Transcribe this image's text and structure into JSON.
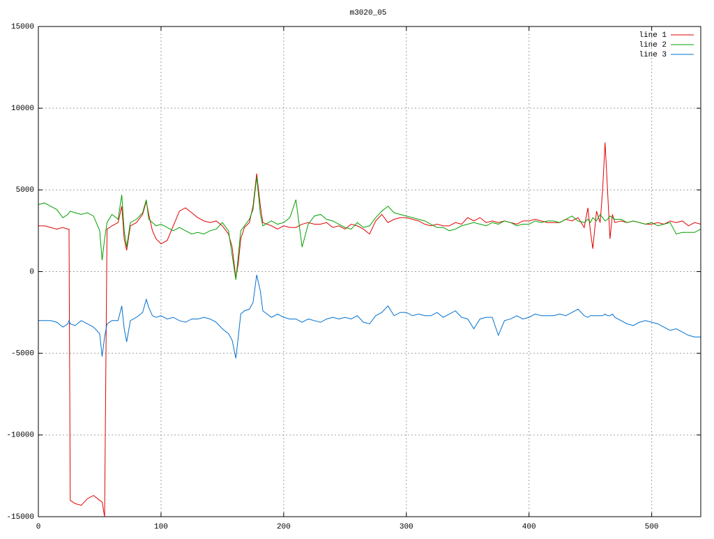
{
  "chart_data": {
    "type": "line",
    "title": "m3020_05",
    "xlim": [
      0,
      540
    ],
    "xticks": [
      0,
      100,
      200,
      300,
      400,
      500
    ],
    "ylim": [
      -15000,
      15000
    ],
    "yticks": [
      -15000,
      -10000,
      -5000,
      0,
      5000,
      10000,
      15000
    ],
    "grid": true,
    "legend": "top-right",
    "x": [
      0,
      5,
      10,
      15,
      20,
      24,
      25,
      26,
      30,
      35,
      40,
      45,
      50,
      52,
      54,
      56,
      60,
      65,
      68,
      70,
      72,
      75,
      80,
      85,
      88,
      90,
      93,
      96,
      100,
      105,
      110,
      115,
      120,
      125,
      130,
      135,
      140,
      145,
      150,
      155,
      158,
      161,
      163,
      165,
      168,
      172,
      175,
      178,
      181,
      183,
      190,
      195,
      200,
      205,
      210,
      215,
      220,
      225,
      230,
      235,
      240,
      245,
      250,
      255,
      260,
      265,
      270,
      275,
      280,
      285,
      290,
      295,
      300,
      305,
      310,
      315,
      320,
      325,
      330,
      335,
      340,
      345,
      350,
      355,
      360,
      365,
      370,
      375,
      380,
      385,
      390,
      395,
      400,
      405,
      410,
      415,
      420,
      425,
      430,
      435,
      440,
      445,
      448,
      450,
      452,
      455,
      458,
      460,
      462,
      464,
      466,
      468,
      470,
      475,
      480,
      485,
      490,
      495,
      500,
      505,
      510,
      515,
      520,
      525,
      530,
      535,
      540
    ],
    "series": [
      {
        "name": "line 1",
        "color": "#e00000",
        "values": [
          2800,
          2800,
          2700,
          2600,
          2700,
          2600,
          2600,
          -14000,
          -14200,
          -14300,
          -13900,
          -13700,
          -14000,
          -14100,
          -15000,
          2600,
          2800,
          3000,
          4000,
          2000,
          1300,
          2800,
          3000,
          3500,
          4300,
          3500,
          2500,
          2000,
          1700,
          1900,
          2800,
          3700,
          3900,
          3600,
          3300,
          3100,
          3000,
          3100,
          2800,
          2300,
          1500,
          -400,
          500,
          2000,
          2700,
          3000,
          4000,
          6000,
          4000,
          3000,
          2800,
          2600,
          2800,
          2700,
          2700,
          2900,
          3000,
          2900,
          2900,
          3000,
          2700,
          2800,
          2600,
          2900,
          2800,
          2600,
          2300,
          3100,
          3500,
          3000,
          3200,
          3300,
          3300,
          3200,
          3100,
          2900,
          2800,
          2900,
          2800,
          2800,
          3000,
          2900,
          3300,
          3100,
          3300,
          3000,
          3100,
          3000,
          3100,
          3000,
          2900,
          3100,
          3100,
          3200,
          3100,
          3000,
          3000,
          3000,
          3200,
          3100,
          3300,
          2700,
          3900,
          2500,
          1400,
          3700,
          3000,
          5000,
          7900,
          5000,
          2000,
          3500,
          3000,
          3100,
          3000,
          3100,
          3000,
          2900,
          2900,
          3000,
          2900,
          3100,
          3000,
          3100,
          2800,
          3000,
          2900
        ]
      },
      {
        "name": "line 2",
        "color": "#00a000",
        "values": [
          4100,
          4200,
          4000,
          3800,
          3300,
          3500,
          3600,
          3700,
          3600,
          3500,
          3600,
          3400,
          2500,
          700,
          2000,
          3000,
          3500,
          3200,
          4700,
          2500,
          1500,
          3000,
          3200,
          3600,
          4400,
          3200,
          3000,
          2800,
          2900,
          2700,
          2500,
          2700,
          2500,
          2300,
          2400,
          2300,
          2500,
          2600,
          3000,
          2500,
          1000,
          -500,
          1000,
          2500,
          2800,
          3200,
          3800,
          5800,
          3500,
          2800,
          3100,
          2900,
          3000,
          3300,
          4400,
          1500,
          2900,
          3400,
          3500,
          3200,
          3100,
          2900,
          2700,
          2600,
          3000,
          2700,
          2800,
          3300,
          3700,
          4000,
          3600,
          3500,
          3400,
          3300,
          3200,
          3100,
          2900,
          2700,
          2700,
          2500,
          2600,
          2800,
          2900,
          3000,
          2900,
          2800,
          3000,
          2900,
          3100,
          3000,
          2800,
          2900,
          2900,
          3100,
          3000,
          3100,
          3100,
          3000,
          3200,
          3400,
          3100,
          3000,
          3200,
          3000,
          3300,
          3100,
          3500,
          3300,
          3100,
          3200,
          3400,
          3300,
          3200,
          3200,
          3000,
          3100,
          3000,
          2900,
          3000,
          2800,
          2900,
          3000,
          2300,
          2400,
          2400,
          2400,
          2600
        ]
      },
      {
        "name": "line 3",
        "color": "#0070d0",
        "values": [
          -3000,
          -3000,
          -3000,
          -3100,
          -3400,
          -3200,
          -3000,
          -3200,
          -3300,
          -3000,
          -3200,
          -3400,
          -3800,
          -5200,
          -4000,
          -3200,
          -3000,
          -3000,
          -2100,
          -3500,
          -4300,
          -3000,
          -2800,
          -2500,
          -1700,
          -2200,
          -2700,
          -2800,
          -2700,
          -2900,
          -2800,
          -3000,
          -3100,
          -2900,
          -2900,
          -2800,
          -2900,
          -3100,
          -3500,
          -3800,
          -4200,
          -5300,
          -4000,
          -2600,
          -2400,
          -2300,
          -1900,
          -200,
          -1200,
          -2400,
          -2800,
          -2600,
          -2800,
          -2900,
          -2900,
          -3100,
          -2900,
          -3000,
          -3100,
          -2900,
          -2800,
          -2900,
          -2800,
          -2900,
          -2700,
          -3100,
          -3200,
          -2700,
          -2500,
          -2100,
          -2700,
          -2500,
          -2500,
          -2700,
          -2600,
          -2700,
          -2700,
          -2500,
          -2800,
          -2600,
          -2400,
          -2800,
          -2900,
          -3500,
          -2900,
          -2800,
          -2800,
          -3900,
          -3000,
          -2900,
          -2700,
          -2900,
          -2800,
          -2600,
          -2700,
          -2700,
          -2700,
          -2600,
          -2700,
          -2500,
          -2300,
          -2700,
          -2800,
          -2700,
          -2700,
          -2700,
          -2700,
          -2700,
          -2600,
          -2700,
          -2700,
          -2600,
          -2800,
          -3000,
          -3200,
          -3300,
          -3100,
          -3000,
          -3100,
          -3200,
          -3400,
          -3600,
          -3500,
          -3700,
          -3900,
          -4000,
          -4000
        ]
      }
    ]
  }
}
